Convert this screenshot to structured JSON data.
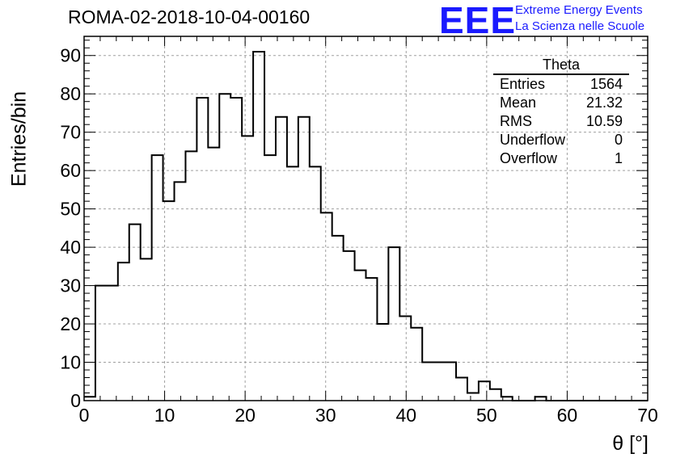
{
  "header": {
    "title": "ROMA-02-2018-10-04-00160",
    "logo_text": "EEE",
    "logo_line1": "Extreme Energy Events",
    "logo_line2": "La Scienza nelle Scuole"
  },
  "stats_box": {
    "title": "Theta",
    "rows": [
      {
        "label": "Entries",
        "value": "1564"
      },
      {
        "label": "Mean",
        "value": "21.32"
      },
      {
        "label": "RMS",
        "value": "10.59"
      },
      {
        "label": "Underflow",
        "value": "0"
      },
      {
        "label": "Overflow",
        "value": "1"
      }
    ]
  },
  "chart_data": {
    "type": "histogram",
    "title": "ROMA-02-2018-10-04-00160",
    "xlabel": "θ [°]",
    "ylabel": "Entries/bin",
    "xlim": [
      0,
      70
    ],
    "ylim": [
      0,
      95
    ],
    "bin_width": 1.4,
    "bin_edges_start": 0,
    "values": [
      1,
      30,
      30,
      36,
      46,
      37,
      64,
      52,
      57,
      65,
      79,
      66,
      80,
      79,
      69,
      91,
      64,
      74,
      61,
      74,
      61,
      49,
      43,
      39,
      34,
      32,
      20,
      40,
      22,
      19,
      10,
      10,
      10,
      6,
      2,
      5,
      3,
      1,
      0,
      0,
      1,
      0,
      0,
      0,
      0,
      0,
      0,
      0,
      0,
      0
    ],
    "x_ticks": [
      0,
      10,
      20,
      30,
      40,
      50,
      60,
      70
    ],
    "y_ticks": [
      0,
      10,
      20,
      30,
      40,
      50,
      60,
      70,
      80,
      90
    ],
    "grid": true,
    "line_color": "#000000",
    "grid_color": "#a0a0a0"
  }
}
